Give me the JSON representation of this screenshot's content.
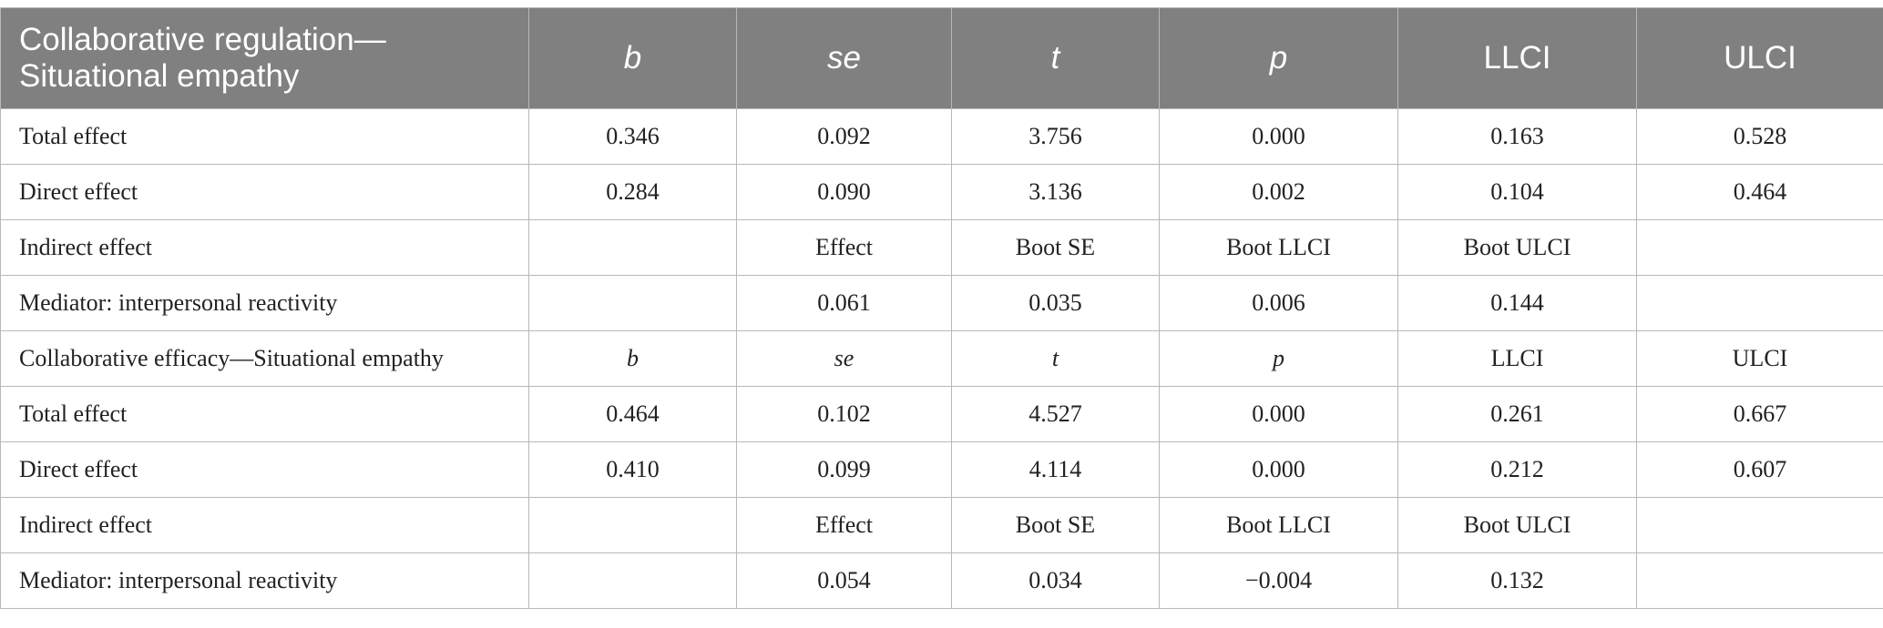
{
  "header": {
    "title_line1": "Collaborative regulation—",
    "title_line2": "Situational empathy",
    "columns": [
      "b",
      "se",
      "t",
      "p",
      "LLCI",
      "ULCI"
    ]
  },
  "rows": [
    {
      "label": "Total effect",
      "cells": [
        "0.346",
        "0.092",
        "3.756",
        "0.000",
        "0.163",
        "0.528"
      ]
    },
    {
      "label": "Direct effect",
      "cells": [
        "0.284",
        "0.090",
        "3.136",
        "0.002",
        "0.104",
        "0.464"
      ]
    },
    {
      "label": "Indirect effect",
      "cells": [
        "",
        "Effect",
        "Boot SE",
        "Boot LLCI",
        "Boot ULCI",
        ""
      ]
    },
    {
      "label": "Mediator: interpersonal reactivity",
      "cells": [
        "",
        "0.061",
        "0.035",
        "0.006",
        "0.144",
        ""
      ]
    },
    {
      "label": "Collaborative efficacy—Situational empathy",
      "cells": [
        "b",
        "se",
        "t",
        "p",
        "LLCI",
        "ULCI"
      ]
    },
    {
      "label": "Total effect",
      "cells": [
        "0.464",
        "0.102",
        "4.527",
        "0.000",
        "0.261",
        "0.667"
      ]
    },
    {
      "label": "Direct effect",
      "cells": [
        "0.410",
        "0.099",
        "4.114",
        "0.000",
        "0.212",
        "0.607"
      ]
    },
    {
      "label": "Indirect effect",
      "cells": [
        "",
        "Effect",
        "Boot SE",
        "Boot LLCI",
        "Boot ULCI",
        ""
      ]
    },
    {
      "label": "Mediator: interpersonal reactivity",
      "cells": [
        "",
        "0.054",
        "0.034",
        "−0.004",
        "0.132",
        ""
      ]
    }
  ]
}
